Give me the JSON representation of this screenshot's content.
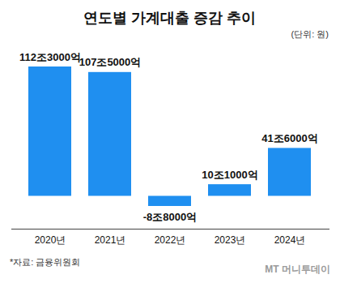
{
  "chart_data": {
    "type": "bar",
    "title": "연도별 가계대출 증감 추이",
    "subtitle": "(단위: 원)",
    "categories": [
      "2020년",
      "2021년",
      "2022년",
      "2023년",
      "2024년"
    ],
    "values": [
      112300000000000,
      107500000000000,
      -8800000000000,
      10100000000000,
      41600000000000
    ],
    "value_labels": [
      "112조3000억",
      "107조5000억",
      "-8조8000억",
      "10조1000억",
      "41조6000억"
    ],
    "color": "#1f8ff0",
    "data_labels": true,
    "tick_labels": "x",
    "grid": false,
    "source": "*자료: 금융위원회",
    "watermark": "MT 머니투데이"
  }
}
